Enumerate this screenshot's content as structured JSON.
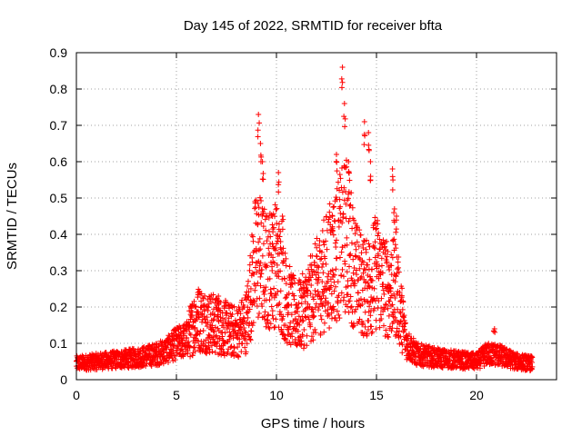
{
  "chart_data": {
    "type": "scatter",
    "title": "Day 145 of 2022, SRMTID for receiver bfta",
    "xlabel": "GPS time / hours",
    "ylabel": "SRMTID / TECUs",
    "xlim": [
      0,
      24
    ],
    "ylim": [
      0,
      0.9
    ],
    "xticks": [
      0,
      5,
      10,
      15,
      20
    ],
    "yticks": [
      0,
      0.1,
      0.2,
      0.3,
      0.4,
      0.5,
      0.6,
      0.7,
      0.8,
      0.9
    ],
    "grid": true,
    "marker": "+",
    "series": [
      {
        "name": "SRMTID",
        "color": "#ff0000",
        "profile": [
          [
            0.0,
            0.045
          ],
          [
            1.0,
            0.05
          ],
          [
            2.0,
            0.055
          ],
          [
            3.0,
            0.06
          ],
          [
            4.0,
            0.07
          ],
          [
            4.5,
            0.08
          ],
          [
            5.0,
            0.1
          ],
          [
            5.5,
            0.11
          ],
          [
            6.0,
            0.17
          ],
          [
            6.5,
            0.16
          ],
          [
            7.0,
            0.15
          ],
          [
            7.5,
            0.14
          ],
          [
            8.0,
            0.13
          ],
          [
            8.5,
            0.16
          ],
          [
            9.0,
            0.35
          ],
          [
            9.5,
            0.3
          ],
          [
            10.0,
            0.32
          ],
          [
            10.5,
            0.22
          ],
          [
            11.0,
            0.17
          ],
          [
            11.5,
            0.2
          ],
          [
            12.0,
            0.25
          ],
          [
            12.5,
            0.3
          ],
          [
            13.0,
            0.35
          ],
          [
            13.5,
            0.4
          ],
          [
            14.0,
            0.28
          ],
          [
            14.5,
            0.25
          ],
          [
            15.0,
            0.3
          ],
          [
            15.5,
            0.25
          ],
          [
            16.0,
            0.25
          ],
          [
            16.5,
            0.1
          ],
          [
            17.0,
            0.07
          ],
          [
            18.0,
            0.06
          ],
          [
            19.0,
            0.055
          ],
          [
            20.0,
            0.05
          ],
          [
            20.5,
            0.07
          ],
          [
            21.0,
            0.07
          ],
          [
            22.0,
            0.05
          ],
          [
            22.8,
            0.045
          ]
        ],
        "peaks": [
          [
            9.1,
            0.73
          ],
          [
            9.2,
            0.65
          ],
          [
            9.3,
            0.6
          ],
          [
            10.1,
            0.57
          ],
          [
            10.3,
            0.45
          ],
          [
            13.0,
            0.62
          ],
          [
            13.3,
            0.86
          ],
          [
            13.4,
            0.76
          ],
          [
            13.6,
            0.6
          ],
          [
            14.4,
            0.71
          ],
          [
            14.6,
            0.68
          ],
          [
            14.7,
            0.6
          ],
          [
            15.8,
            0.58
          ],
          [
            15.9,
            0.47
          ],
          [
            16.0,
            0.45
          ],
          [
            6.1,
            0.24
          ],
          [
            7.1,
            0.23
          ],
          [
            20.9,
            0.14
          ],
          [
            12.8,
            0.45
          ],
          [
            9.8,
            0.45
          ]
        ],
        "x_end": 22.8,
        "sample_interval_hours": 0.0083
      }
    ]
  }
}
